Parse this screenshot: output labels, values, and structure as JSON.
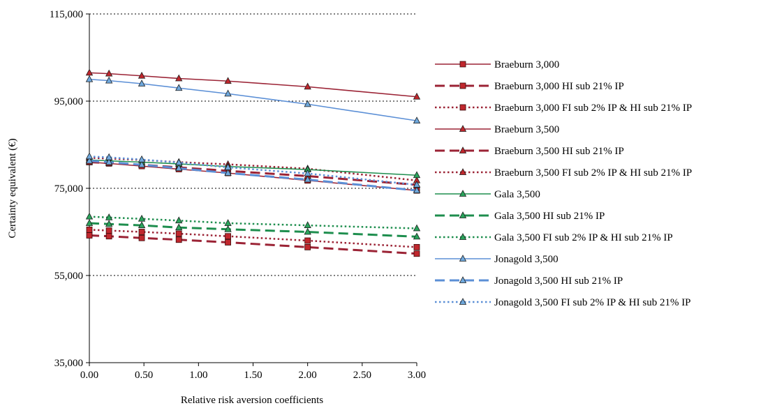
{
  "chart_data": {
    "type": "line",
    "xlabel": "Relative risk aversion coefficients",
    "ylabel": "Certainty equivalent (€)",
    "xlim": [
      0,
      3
    ],
    "ylim": [
      35000,
      115000
    ],
    "x_ticks": [
      "0.00",
      "0.50",
      "1.00",
      "1.50",
      "2.00",
      "2.50",
      "3.00"
    ],
    "y_ticks": [
      "35,000",
      "55,000",
      "75,000",
      "95,000",
      "115,000"
    ],
    "grid": "horizontal dotted",
    "legend_position": "right",
    "x": [
      0.0,
      0.18,
      0.48,
      0.82,
      1.27,
      2.0,
      3.0
    ],
    "series": [
      {
        "name": "Braeburn 3,000",
        "color": "#9b2335",
        "line": "solid",
        "marker": "square",
        "marker_color": "#c0272d",
        "values": null
      },
      {
        "name": "Braeburn 3,000 HI sub 21% IP",
        "color": "#9b2335",
        "line": "dashed",
        "marker": "square",
        "marker_color": "#c0272d",
        "values": [
          64200,
          64000,
          63600,
          63200,
          62600,
          61500,
          60000
        ]
      },
      {
        "name": "Braeburn 3,000 FI sub 2% IP & HI sub 21% IP",
        "color": "#9b2335",
        "line": "dotted",
        "marker": "square",
        "marker_color": "#c0272d",
        "values": [
          65500,
          65300,
          65000,
          64600,
          64000,
          63000,
          61500
        ]
      },
      {
        "name": "Braeburn 3,500",
        "color": "#9b2335",
        "line": "solid",
        "marker": "triangle",
        "marker_color": "#c0272d",
        "values": [
          101500,
          101300,
          100800,
          100200,
          99600,
          98300,
          96000
        ]
      },
      {
        "name": "Braeburn 3,500 HI sub 21% IP",
        "color": "#9b2335",
        "line": "dashed",
        "marker": "triangle",
        "marker_color": "#c0272d",
        "values": [
          81000,
          80800,
          80400,
          79800,
          79000,
          77800,
          75800
        ]
      },
      {
        "name": "Braeburn 3,500 FI sub 2% IP & HI sub 21% IP",
        "color": "#9b2335",
        "line": "dotted",
        "marker": "triangle",
        "marker_color": "#c0272d",
        "values": [
          82000,
          81800,
          81500,
          81000,
          80500,
          79500,
          76800
        ]
      },
      {
        "name": "Gala 3,500",
        "color": "#1e8e4e",
        "line": "solid",
        "marker": "triangle",
        "marker_color": "#2aa45c",
        "values": [
          81500,
          81300,
          81000,
          80600,
          80000,
          79300,
          78000
        ]
      },
      {
        "name": "Gala 3,500 HI sub 21% IP",
        "color": "#1e8e4e",
        "line": "dashed",
        "marker": "triangle",
        "marker_color": "#2aa45c",
        "values": [
          67000,
          66800,
          66500,
          66000,
          65600,
          65000,
          63900
        ]
      },
      {
        "name": "Gala 3,500 FI sub 2% IP & HI sub 21% IP",
        "color": "#1e8e4e",
        "line": "dotted",
        "marker": "triangle",
        "marker_color": "#2aa45c",
        "values": [
          68500,
          68300,
          68000,
          67600,
          67000,
          66500,
          65800
        ]
      },
      {
        "name": "Jonagold 3,500",
        "color": "#5b8fd6",
        "line": "solid",
        "marker": "triangle",
        "marker_color": "#6fa8dc",
        "values": [
          100000,
          99700,
          99000,
          98000,
          96700,
          94300,
          90500
        ]
      },
      {
        "name": "Jonagold 3,500 HI sub 21% IP",
        "color": "#5b8fd6",
        "line": "dashed",
        "marker": "triangle",
        "marker_color": "#6fa8dc",
        "values": [
          81300,
          81000,
          80400,
          79600,
          78500,
          77000,
          74500
        ]
      },
      {
        "name": "Jonagold 3,500 FI sub 2% IP & HI sub 21% IP",
        "color": "#5b8fd6",
        "line": "dotted",
        "marker": "triangle",
        "marker_color": "#6fa8dc",
        "values": [
          82300,
          82100,
          81600,
          80900,
          79800,
          78400,
          75800
        ]
      }
    ]
  },
  "braeburn3000_values": [
    81000,
    80700,
    80100,
    79400,
    78500,
    76800,
    74500
  ]
}
